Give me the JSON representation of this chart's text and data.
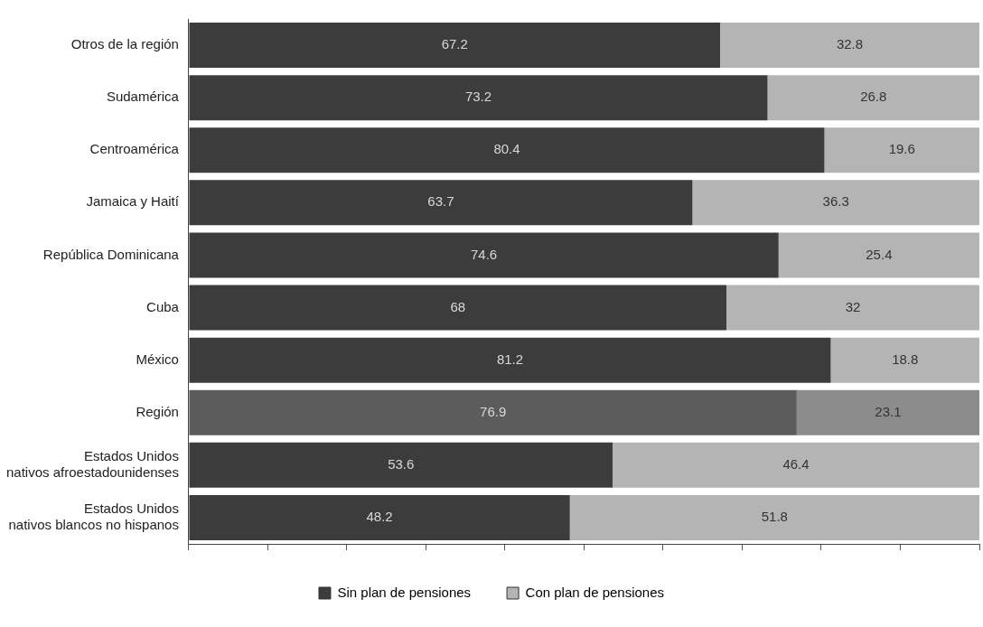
{
  "chart_data": {
    "type": "bar",
    "orientation": "horizontal",
    "stacked": true,
    "categories": [
      "Otros de la región",
      "Sudamérica",
      "Centroamérica",
      "Jamaica y Haití",
      "República Dominicana",
      "Cuba",
      "México",
      "Región",
      "Estados Unidos\nnativos afroestadounidenses",
      "Estados Unidos\nnativos blancos no hispanos"
    ],
    "series": [
      {
        "name": "Sin plan de pensiones",
        "color": "#3c3c3c",
        "colors": [
          "#3c3c3c",
          "#3c3c3c",
          "#3c3c3c",
          "#3c3c3c",
          "#3c3c3c",
          "#3c3c3c",
          "#3c3c3c",
          "#5c5c5c",
          "#3c3c3c",
          "#3c3c3c"
        ],
        "values": [
          67.2,
          73.2,
          80.4,
          63.7,
          74.6,
          68,
          81.2,
          76.9,
          53.6,
          48.2
        ]
      },
      {
        "name": "Con plan de pensiones",
        "color": "#b4b4b4",
        "colors": [
          "#b4b4b4",
          "#b4b4b4",
          "#b4b4b4",
          "#b4b4b4",
          "#b4b4b4",
          "#b4b4b4",
          "#b4b4b4",
          "#8c8c8c",
          "#b4b4b4",
          "#b4b4b4"
        ],
        "values": [
          32.8,
          26.8,
          19.6,
          36.3,
          25.4,
          32,
          18.8,
          23.1,
          46.4,
          51.8
        ]
      }
    ],
    "xlim": [
      0,
      100
    ],
    "xticks": [
      {
        "value": 0,
        "label": null
      },
      {
        "value": 10,
        "label": null
      },
      {
        "value": 20,
        "label": null
      },
      {
        "value": 30,
        "label": null
      },
      {
        "value": 40,
        "label": null
      },
      {
        "value": 50,
        "label": null
      },
      {
        "value": 60,
        "label": null
      },
      {
        "value": 70,
        "label": null
      },
      {
        "value": 80,
        "label": null
      },
      {
        "value": 90,
        "label": null
      },
      {
        "value": 100,
        "label": null
      }
    ],
    "tick_labels": "y",
    "data_labels": true,
    "legend": "bottom"
  }
}
